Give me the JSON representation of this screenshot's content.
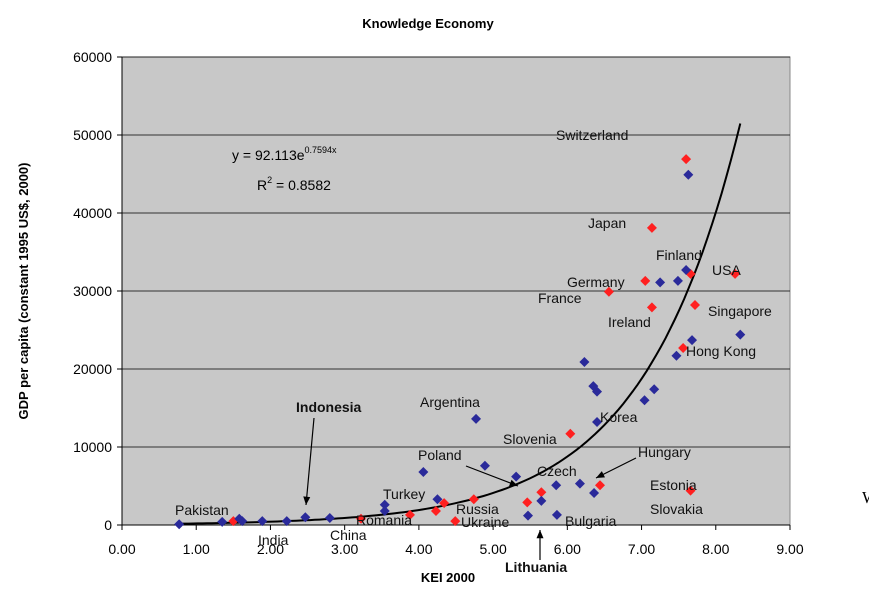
{
  "chart_data": {
    "type": "scatter",
    "title": "Knowledge Economy",
    "x_label": "KEI 2000",
    "y_label": "GDP per capita (constant 1995 US$, 2000)",
    "xlim": [
      0,
      9
    ],
    "ylim": [
      0,
      60000
    ],
    "xticks": [
      {
        "value": 0,
        "label": "0.00"
      },
      {
        "value": 1,
        "label": "1.00"
      },
      {
        "value": 2,
        "label": "2.00"
      },
      {
        "value": 3,
        "label": "3.00"
      },
      {
        "value": 4,
        "label": "4.00"
      },
      {
        "value": 5,
        "label": "5.00"
      },
      {
        "value": 6,
        "label": "6.00"
      },
      {
        "value": 7,
        "label": "7.00"
      },
      {
        "value": 8,
        "label": "8.00"
      },
      {
        "value": 9,
        "label": "9.00"
      }
    ],
    "yticks": [
      0,
      10000,
      20000,
      30000,
      40000,
      50000,
      60000
    ],
    "grid": true,
    "series": [
      {
        "color": "#ff2020",
        "x": [
          7.6,
          7.14,
          7.05,
          7.66,
          8.26,
          6.56,
          7.14,
          7.72,
          7.56,
          6.04,
          6.44,
          7.66,
          5.65,
          5.46,
          4.74,
          4.34,
          4.23,
          3.88,
          3.22,
          1.5,
          4.49
        ],
        "values": [
          46900,
          38100,
          31300,
          32200,
          32200,
          29900,
          27900,
          28200,
          22700,
          11700,
          5100,
          4400,
          4200,
          2900,
          3300,
          2800,
          1800,
          1300,
          800,
          500,
          500
        ]
      },
      {
        "color": "#2a2a9a",
        "x": [
          7.63,
          7.6,
          7.25,
          7.49,
          7.68,
          8.33,
          7.47,
          6.23,
          6.35,
          6.4,
          7.17,
          7.04,
          6.4,
          4.77,
          4.89,
          5.31,
          5.85,
          6.17,
          6.36,
          5.65,
          5.86,
          5.47,
          4.25,
          4.06,
          3.54,
          3.54,
          2.47,
          1.89,
          1.62,
          1.35,
          2.22,
          0.77,
          1.58,
          2.8
        ],
        "values": [
          44900,
          32700,
          31100,
          31300,
          23700,
          24400,
          21700,
          20900,
          17800,
          17100,
          17400,
          16000,
          13200,
          13600,
          7600,
          6200,
          5100,
          5300,
          4100,
          3100,
          1300,
          1200,
          3300,
          6800,
          2600,
          1800,
          1000,
          500,
          500,
          400,
          500,
          100,
          800,
          900
        ]
      }
    ],
    "trendline": {
      "a": 92.113,
      "b": 0.7594
    },
    "equation": "y = 92.113e",
    "equation_exponent": "0.7594x",
    "r_squared": "R",
    "r_squared_power": "2",
    "r_squared_value": " = 0.8582",
    "annotations": [
      "Switzerland",
      "Japan",
      "Finland",
      "USA",
      "Germany",
      "France",
      "Ireland",
      "Singapore",
      "Hong Kong",
      "Argentina",
      "Korea",
      "Slovenia",
      "Hungary",
      "Poland",
      "Czech",
      "Estonia",
      "Slovakia",
      "Turkey",
      "Russia",
      "Romania",
      "Ukraine",
      "Bulgaria",
      "Lithuania",
      "Pakistan",
      "India",
      "China",
      "Indonesia"
    ],
    "source": "مأخذ: World Bank and World Bank Institute"
  }
}
